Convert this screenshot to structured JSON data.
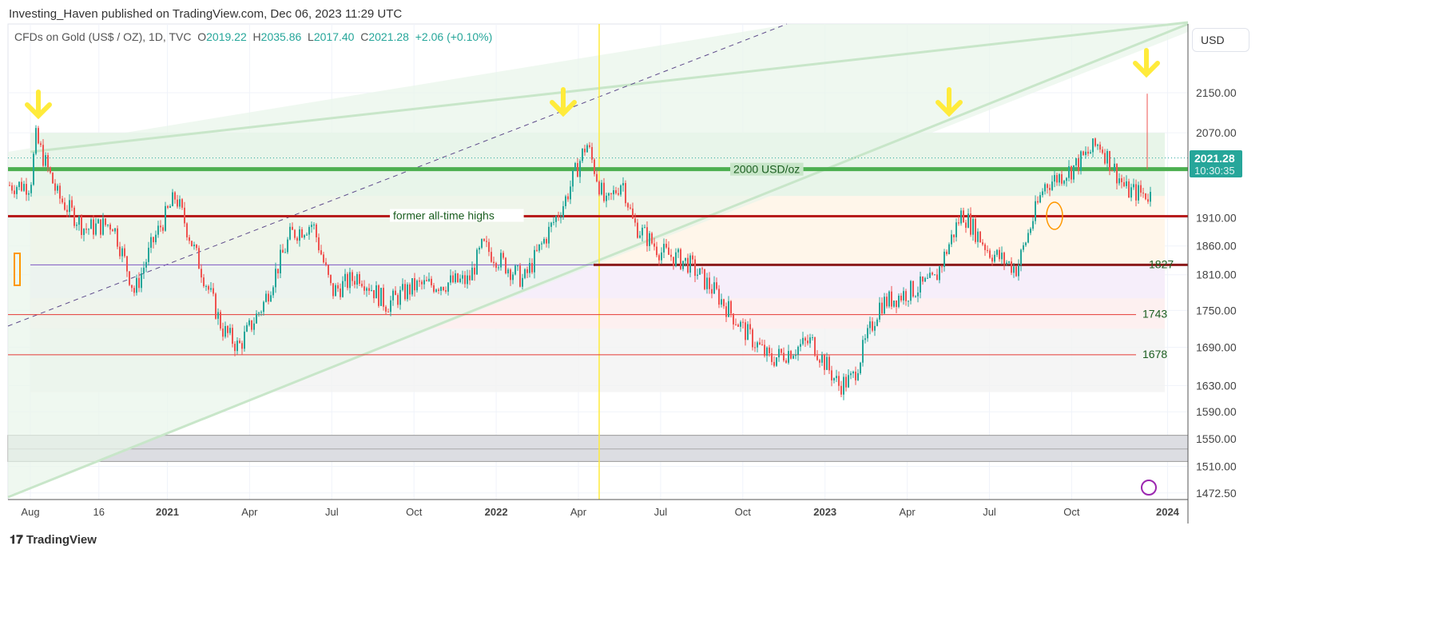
{
  "header": {
    "published": "Investing_Haven published on TradingView.com, Dec 06, 2023 11:29 UTC"
  },
  "legend": {
    "symbol": "CFDs on Gold (US$ / OZ), 1D, TVC",
    "o_label": "O",
    "o": "2019.22",
    "h_label": "H",
    "h": "2035.86",
    "l_label": "L",
    "l": "2017.40",
    "c_label": "C",
    "c": "2021.28",
    "change": "+2.06 (+0.10%)"
  },
  "currency_button": "USD",
  "branding": "TradingView",
  "colors": {
    "up": "#26a69a",
    "down": "#ef5350",
    "green_line": "#4caf50",
    "red_line": "#b71c1c",
    "arrow": "#ffeb3b"
  },
  "chart_data": {
    "type": "candlestick",
    "scale": "log",
    "title": "CFDs on Gold (US$ / OZ), 1D, TVC",
    "ylim": [
      1472.5,
      2240
    ],
    "y_ticks": [
      "2150.00",
      "2070.00",
      "1910.00",
      "1860.00",
      "1810.00",
      "1750.00",
      "1690.00",
      "1630.00",
      "1590.00",
      "1550.00",
      "1510.00",
      "1472.50"
    ],
    "x_ticks": [
      {
        "label": "Aug",
        "m": 0
      },
      {
        "label": "16",
        "m": 2.5
      },
      {
        "label": "2021",
        "m": 5
      },
      {
        "label": "Apr",
        "m": 8
      },
      {
        "label": "Jul",
        "m": 11
      },
      {
        "label": "Oct",
        "m": 14
      },
      {
        "label": "2022",
        "m": 17
      },
      {
        "label": "Apr",
        "m": 20
      },
      {
        "label": "Jul",
        "m": 23
      },
      {
        "label": "Oct",
        "m": 26
      },
      {
        "label": "2023",
        "m": 29
      },
      {
        "label": "Apr",
        "m": 32
      },
      {
        "label": "Jul",
        "m": 35
      },
      {
        "label": "Oct",
        "m": 38
      },
      {
        "label": "2024",
        "m": 41.5
      }
    ],
    "path_months_from_aug2020": [
      [
        0,
        1970
      ],
      [
        0.2,
        2060
      ],
      [
        1,
        1950
      ],
      [
        2,
        1890
      ],
      [
        3,
        1900
      ],
      [
        3.8,
        1780
      ],
      [
        4.5,
        1870
      ],
      [
        5.3,
        1950
      ],
      [
        6,
        1850
      ],
      [
        7,
        1720
      ],
      [
        7.6,
        1690
      ],
      [
        8.5,
        1760
      ],
      [
        9.5,
        1880
      ],
      [
        10.3,
        1900
      ],
      [
        11,
        1780
      ],
      [
        12,
        1810
      ],
      [
        13,
        1760
      ],
      [
        14,
        1790
      ],
      [
        16,
        1800
      ],
      [
        16.5,
        1860
      ],
      [
        18,
        1800
      ],
      [
        19.5,
        1940
      ],
      [
        20.3,
        2050
      ],
      [
        21,
        1930
      ],
      [
        21.6,
        1980
      ],
      [
        22,
        1900
      ],
      [
        23,
        1850
      ],
      [
        24,
        1830
      ],
      [
        25,
        1780
      ],
      [
        26,
        1720
      ],
      [
        27,
        1670
      ],
      [
        28.5,
        1700
      ],
      [
        29.5,
        1630
      ],
      [
        30,
        1640
      ],
      [
        31,
        1760
      ],
      [
        32,
        1780
      ],
      [
        33,
        1800
      ],
      [
        34,
        1920
      ],
      [
        35,
        1850
      ],
      [
        36,
        1820
      ],
      [
        37,
        1970
      ],
      [
        38,
        2000
      ],
      [
        39,
        2050
      ],
      [
        40,
        1960
      ],
      [
        41,
        1950
      ],
      [
        42,
        1930
      ],
      [
        43,
        1900
      ],
      [
        44,
        1930
      ],
      [
        45,
        1860
      ],
      [
        46,
        1990
      ],
      [
        47,
        1980
      ],
      [
        48,
        2040
      ],
      [
        48.4,
        2021
      ]
    ],
    "levels": [
      {
        "price": 2000,
        "label": "2000 USD/oz",
        "kind": "green"
      },
      {
        "price": 1913,
        "label": "former all-time highs",
        "kind": "red"
      },
      {
        "price": 1827,
        "label": "1827",
        "kind": "darkred"
      },
      {
        "price": 1743,
        "label": "1743",
        "kind": "thin"
      },
      {
        "price": 1678,
        "label": "1678",
        "kind": "thin"
      }
    ],
    "last_price": "2021.28",
    "countdown": "10:30:35",
    "spike_high": 2148
  }
}
